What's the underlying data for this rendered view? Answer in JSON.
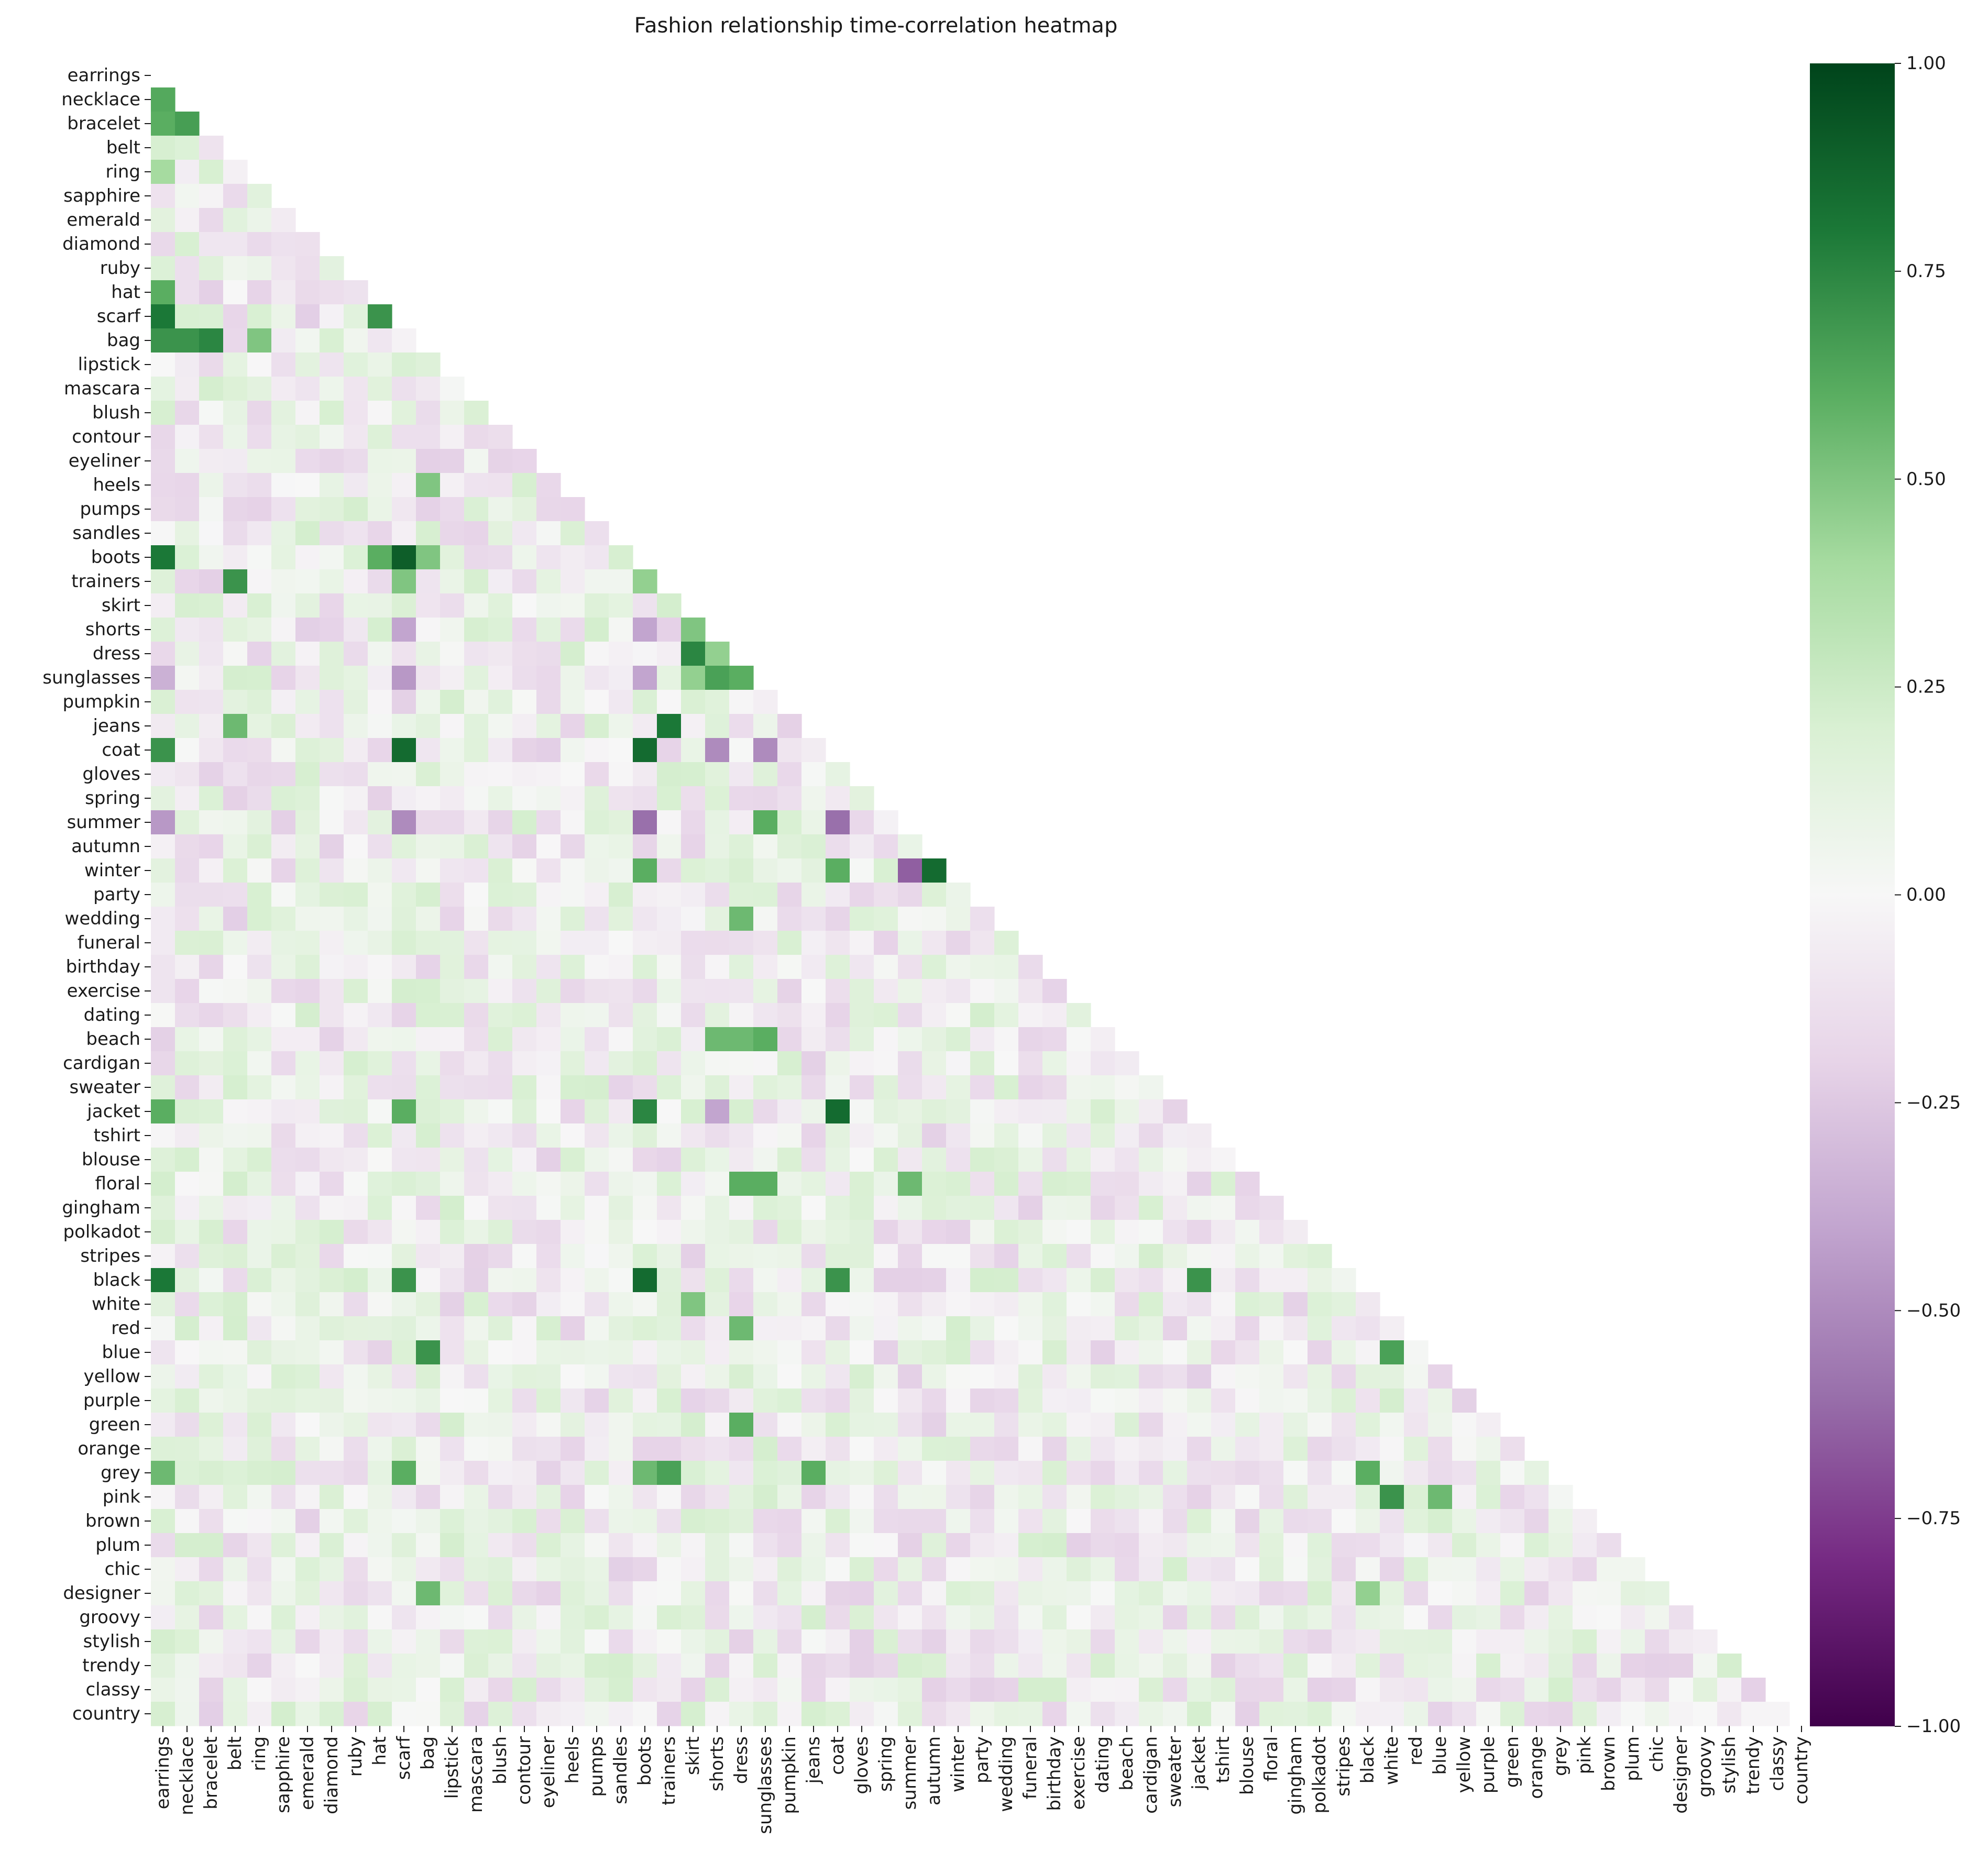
{
  "chart_data": {
    "type": "heatmap",
    "title": "Fashion relationship time-correlation heatmap",
    "xlabel": "",
    "ylabel": "",
    "mask": "upper-triangle-including-diagonal",
    "labels": [
      "earrings",
      "necklace",
      "bracelet",
      "belt",
      "ring",
      "sapphire",
      "emerald",
      "diamond",
      "ruby",
      "hat",
      "scarf",
      "bag",
      "lipstick",
      "mascara",
      "blush",
      "contour",
      "eyeliner",
      "heels",
      "pumps",
      "sandles",
      "boots",
      "trainers",
      "skirt",
      "shorts",
      "dress",
      "sunglasses",
      "pumpkin",
      "jeans",
      "coat",
      "gloves",
      "spring",
      "summer",
      "autumn",
      "winter",
      "party",
      "wedding",
      "funeral",
      "birthday",
      "exercise",
      "dating",
      "beach",
      "cardigan",
      "sweater",
      "jacket",
      "tshirt",
      "blouse",
      "floral",
      "gingham",
      "polkadot",
      "stripes",
      "black",
      "white",
      "red",
      "blue",
      "yellow",
      "purple",
      "green",
      "orange",
      "grey",
      "pink",
      "brown",
      "plum",
      "chic",
      "designer",
      "groovy",
      "stylish",
      "trendy",
      "classy",
      "country"
    ],
    "colormap": {
      "name": "PRGn",
      "stops": [
        {
          "value": -1.0,
          "color": "#40004b"
        },
        {
          "value": -0.8,
          "color": "#762a83"
        },
        {
          "value": -0.6,
          "color": "#9970ab"
        },
        {
          "value": -0.4,
          "color": "#c2a5cf"
        },
        {
          "value": -0.2,
          "color": "#e7d4e8"
        },
        {
          "value": 0.0,
          "color": "#f7f7f7"
        },
        {
          "value": 0.2,
          "color": "#d9f0d3"
        },
        {
          "value": 0.4,
          "color": "#a6dba0"
        },
        {
          "value": 0.6,
          "color": "#5aae61"
        },
        {
          "value": 0.8,
          "color": "#1b7837"
        },
        {
          "value": 1.0,
          "color": "#00441b"
        }
      ]
    },
    "colorbar": {
      "vmin": -1.0,
      "vmax": 1.0,
      "ticks": [
        -1.0,
        -0.75,
        -0.5,
        -0.25,
        0.0,
        0.25,
        0.5,
        0.75,
        1.0
      ],
      "tick_labels": [
        "−1.00",
        "−0.75",
        "−0.50",
        "−0.25",
        "0.00",
        "0.25",
        "0.50",
        "0.75",
        "1.00"
      ]
    },
    "notable_correlations": [
      {
        "row": "necklace",
        "col": "earrings",
        "value": 0.62
      },
      {
        "row": "bracelet",
        "col": "earrings",
        "value": 0.6
      },
      {
        "row": "bracelet",
        "col": "necklace",
        "value": 0.66
      },
      {
        "row": "ring",
        "col": "earrings",
        "value": 0.4
      },
      {
        "row": "hat",
        "col": "earrings",
        "value": 0.6
      },
      {
        "row": "scarf",
        "col": "earrings",
        "value": 0.8
      },
      {
        "row": "scarf",
        "col": "hat",
        "value": 0.7
      },
      {
        "row": "bag",
        "col": "earrings",
        "value": 0.7
      },
      {
        "row": "bag",
        "col": "necklace",
        "value": 0.7
      },
      {
        "row": "bag",
        "col": "bracelet",
        "value": 0.75
      },
      {
        "row": "bag",
        "col": "ring",
        "value": 0.5
      },
      {
        "row": "heels",
        "col": "bag",
        "value": 0.5
      },
      {
        "row": "boots",
        "col": "earrings",
        "value": 0.8
      },
      {
        "row": "boots",
        "col": "hat",
        "value": 0.6
      },
      {
        "row": "boots",
        "col": "scarf",
        "value": 0.9
      },
      {
        "row": "boots",
        "col": "bag",
        "value": 0.5
      },
      {
        "row": "trainers",
        "col": "belt",
        "value": 0.7
      },
      {
        "row": "trainers",
        "col": "scarf",
        "value": 0.5
      },
      {
        "row": "trainers",
        "col": "boots",
        "value": 0.45
      },
      {
        "row": "shorts",
        "col": "scarf",
        "value": -0.4
      },
      {
        "row": "shorts",
        "col": "boots",
        "value": -0.4
      },
      {
        "row": "shorts",
        "col": "skirt",
        "value": 0.5
      },
      {
        "row": "dress",
        "col": "skirt",
        "value": 0.75
      },
      {
        "row": "dress",
        "col": "shorts",
        "value": 0.45
      },
      {
        "row": "sunglasses",
        "col": "earrings",
        "value": -0.35
      },
      {
        "row": "sunglasses",
        "col": "scarf",
        "value": -0.45
      },
      {
        "row": "sunglasses",
        "col": "boots",
        "value": -0.4
      },
      {
        "row": "sunglasses",
        "col": "skirt",
        "value": 0.45
      },
      {
        "row": "sunglasses",
        "col": "shorts",
        "value": 0.65
      },
      {
        "row": "sunglasses",
        "col": "dress",
        "value": 0.6
      },
      {
        "row": "jeans",
        "col": "belt",
        "value": 0.55
      },
      {
        "row": "jeans",
        "col": "trainers",
        "value": 0.8
      },
      {
        "row": "coat",
        "col": "earrings",
        "value": 0.7
      },
      {
        "row": "coat",
        "col": "scarf",
        "value": 0.85
      },
      {
        "row": "coat",
        "col": "boots",
        "value": 0.85
      },
      {
        "row": "coat",
        "col": "shorts",
        "value": -0.5
      },
      {
        "row": "coat",
        "col": "sunglasses",
        "value": -0.5
      },
      {
        "row": "summer",
        "col": "earrings",
        "value": -0.45
      },
      {
        "row": "summer",
        "col": "scarf",
        "value": -0.5
      },
      {
        "row": "summer",
        "col": "boots",
        "value": -0.6
      },
      {
        "row": "summer",
        "col": "sunglasses",
        "value": 0.6
      },
      {
        "row": "summer",
        "col": "coat",
        "value": -0.6
      },
      {
        "row": "winter",
        "col": "autumn",
        "value": 0.85
      },
      {
        "row": "winter",
        "col": "summer",
        "value": -0.65
      },
      {
        "row": "winter",
        "col": "coat",
        "value": 0.6
      },
      {
        "row": "winter",
        "col": "boots",
        "value": 0.6
      },
      {
        "row": "wedding",
        "col": "dress",
        "value": 0.55
      },
      {
        "row": "beach",
        "col": "shorts",
        "value": 0.55
      },
      {
        "row": "beach",
        "col": "dress",
        "value": 0.55
      },
      {
        "row": "beach",
        "col": "sunglasses",
        "value": 0.6
      },
      {
        "row": "jacket",
        "col": "earrings",
        "value": 0.6
      },
      {
        "row": "jacket",
        "col": "scarf",
        "value": 0.6
      },
      {
        "row": "jacket",
        "col": "boots",
        "value": 0.75
      },
      {
        "row": "jacket",
        "col": "coat",
        "value": 0.85
      },
      {
        "row": "jacket",
        "col": "shorts",
        "value": -0.4
      },
      {
        "row": "floral",
        "col": "dress",
        "value": 0.6
      },
      {
        "row": "floral",
        "col": "sunglasses",
        "value": 0.6
      },
      {
        "row": "floral",
        "col": "summer",
        "value": 0.55
      },
      {
        "row": "black",
        "col": "earrings",
        "value": 0.8
      },
      {
        "row": "black",
        "col": "scarf",
        "value": 0.7
      },
      {
        "row": "black",
        "col": "boots",
        "value": 0.85
      },
      {
        "row": "black",
        "col": "coat",
        "value": 0.7
      },
      {
        "row": "black",
        "col": "jacket",
        "value": 0.7
      },
      {
        "row": "white",
        "col": "skirt",
        "value": 0.5
      },
      {
        "row": "red",
        "col": "dress",
        "value": 0.55
      },
      {
        "row": "blue",
        "col": "bag",
        "value": 0.7
      },
      {
        "row": "blue",
        "col": "white",
        "value": 0.65
      },
      {
        "row": "green",
        "col": "dress",
        "value": 0.6
      },
      {
        "row": "grey",
        "col": "earrings",
        "value": 0.55
      },
      {
        "row": "grey",
        "col": "scarf",
        "value": 0.6
      },
      {
        "row": "grey",
        "col": "boots",
        "value": 0.55
      },
      {
        "row": "grey",
        "col": "trainers",
        "value": 0.65
      },
      {
        "row": "grey",
        "col": "jeans",
        "value": 0.6
      },
      {
        "row": "grey",
        "col": "black",
        "value": 0.6
      },
      {
        "row": "pink",
        "col": "white",
        "value": 0.7
      },
      {
        "row": "pink",
        "col": "blue",
        "value": 0.55
      },
      {
        "row": "designer",
        "col": "bag",
        "value": 0.55
      },
      {
        "row": "designer",
        "col": "black",
        "value": 0.45
      }
    ]
  }
}
